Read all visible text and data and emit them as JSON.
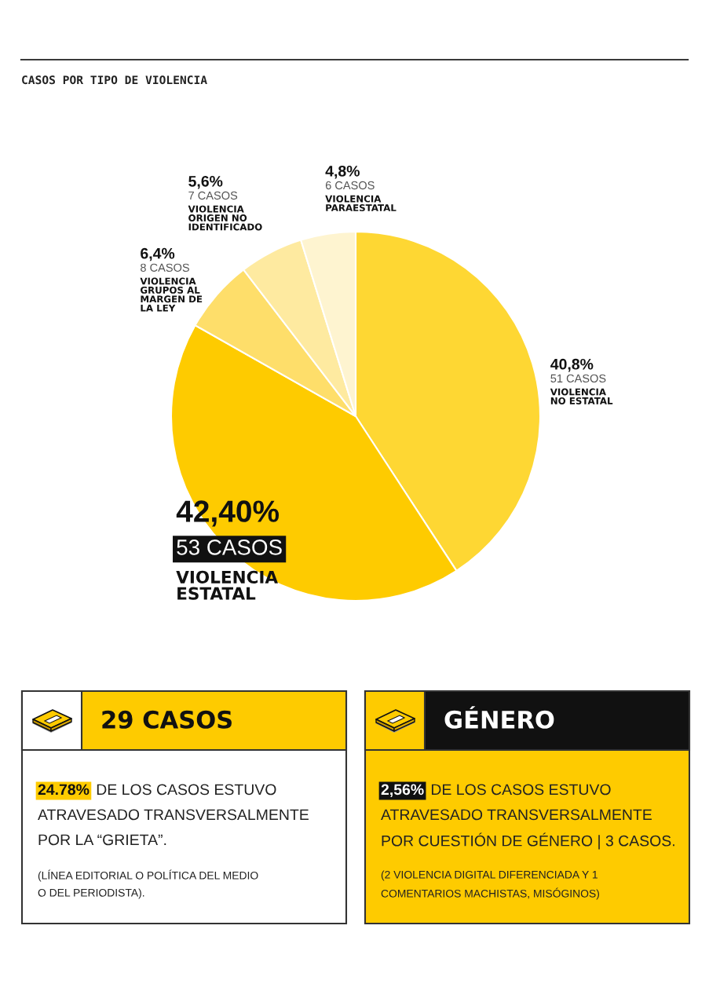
{
  "chart_data": [
    {
      "type": "pie",
      "title": "CASOS POR TIPO DE VIOLENCIA",
      "categories": [
        "VIOLENCIA\nNO ESTATAL",
        "VIOLENCIA\nESTATAL",
        "VIOLENCIA\nGRUPOS AL\nMARGEN DE\nLA LEY",
        "VIOLENCIA\nORIGEN NO\nIDENTIFICADO",
        "VIOLENCIA\nPARAESTATAL"
      ],
      "values": [
        51,
        53,
        8,
        7,
        6
      ],
      "colors": [
        "#fed733",
        "#fecb00",
        "#fede6a",
        "#feeaa0",
        "#fef4d0"
      ],
      "value_labels": [
        "40,8%\n51 CASOS",
        "42,40%\n53 CASOS",
        "6,4%\n8 CASOS",
        "5,6%\n7 CASOS",
        "4,8%\n6 CASOS"
      ]
    },
    {
      "type": "other",
      "title": "29 CASOS",
      "annotations": [
        "24.78%",
        "DE LOS CASOS ESTUVO\nATRAVESADO TRANSVERSALMENTE\nPOR LA “GRIETA”.",
        "(LÍNEA EDITORIAL O POLÍTICA DEL MEDIO\nO DEL PERIODISTA)."
      ]
    },
    {
      "type": "other",
      "title": "GÉNERO",
      "annotations": [
        "2,56%",
        "DE LOS CASOS ESTUVO\nATRAVESADO TRANSVERSALMENTE\nPOR CUESTIÓN DE GÉNERO | 3 CASOS.",
        "(2 VIOLENCIA DIGITAL DIFERENCIADA Y 1\nCOMENTARIOS MACHISTAS, MISÓGINOS)"
      ]
    }
  ]
}
